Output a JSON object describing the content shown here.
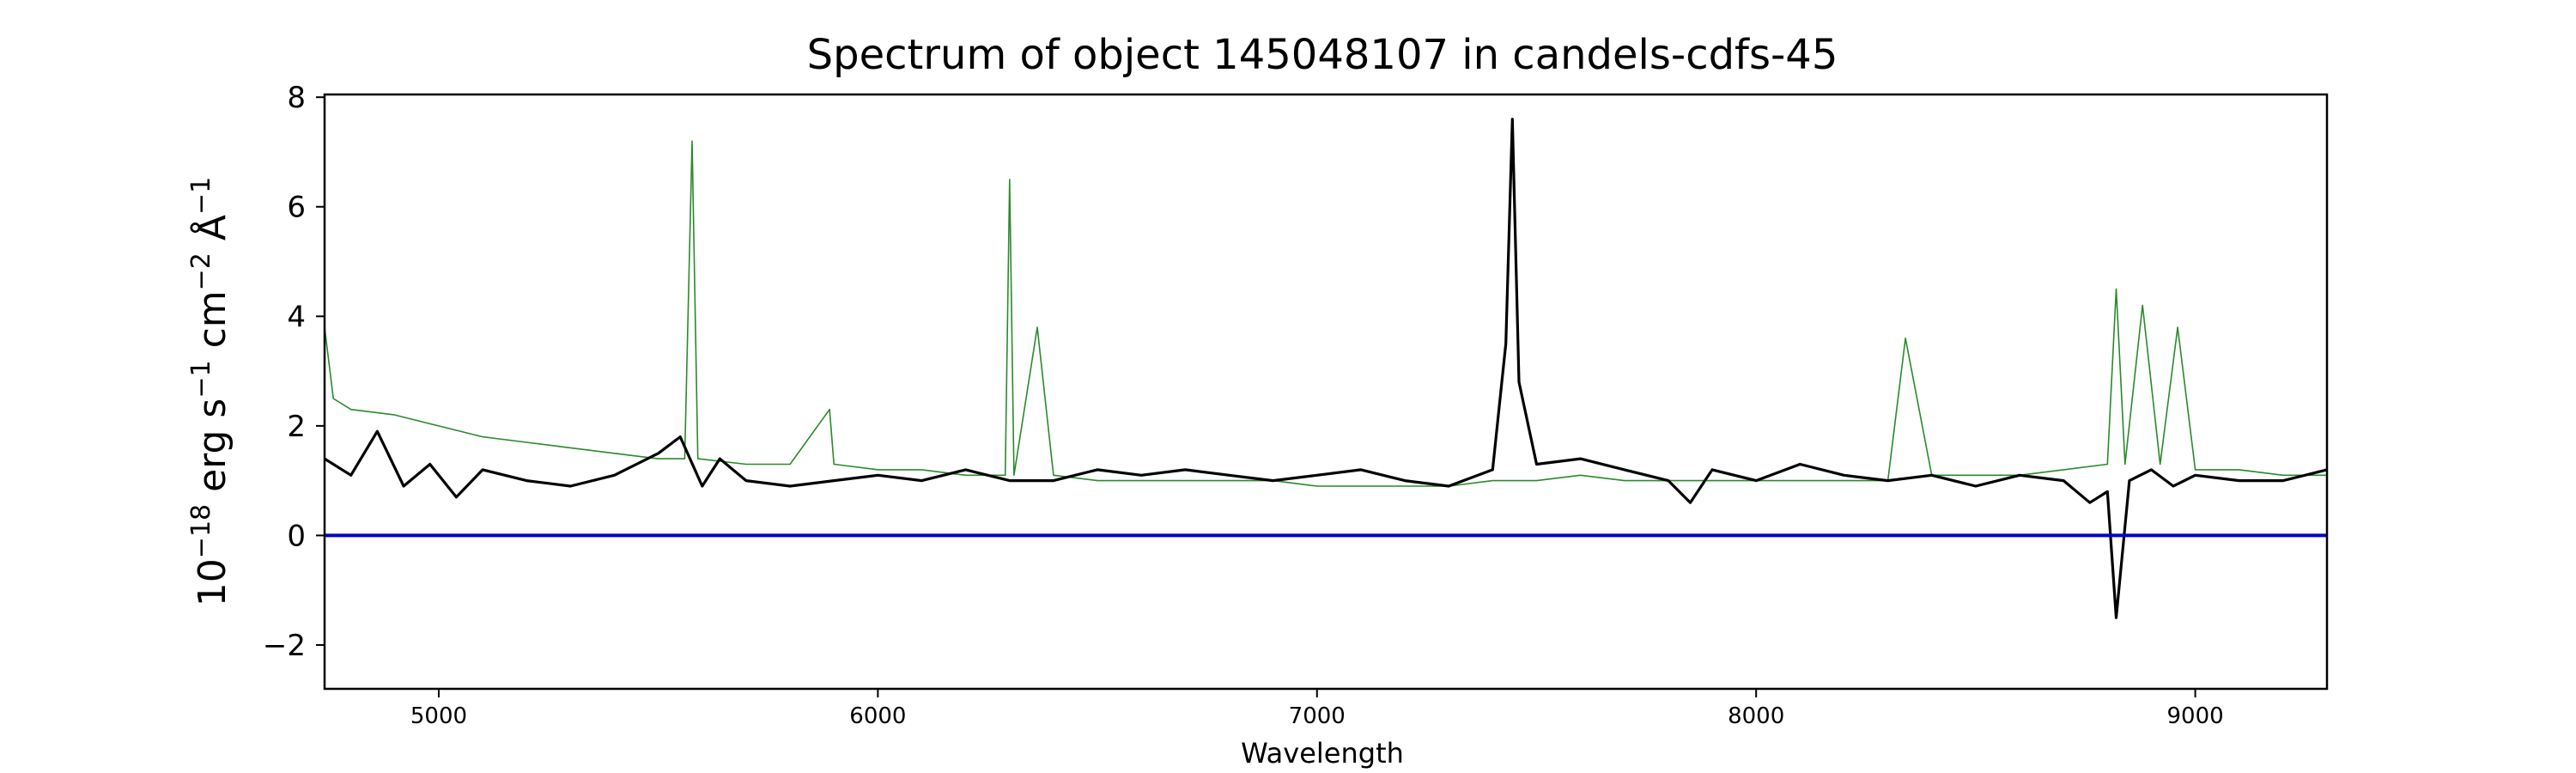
{
  "chart_data": {
    "type": "line",
    "title": "Spectrum of object 145048107 in candels-cdfs-45",
    "xlabel": "Wavelength",
    "ylabel_main": "10",
    "ylabel_sup": "−18",
    "ylabel_rest": " erg s",
    "ylabel_sup2": "−1",
    "ylabel_cm": " cm",
    "ylabel_sup3": "−2",
    "ylabel_A": " Å",
    "ylabel_sup4": "−1",
    "xlim": [
      4740,
      9300
    ],
    "ylim": [
      -2.8,
      8.05
    ],
    "x_ticks": [
      5000,
      6000,
      7000,
      8000,
      9000
    ],
    "x_tick_labels": [
      "5000",
      "6000",
      "7000",
      "8000",
      "9000"
    ],
    "y_ticks": [
      -2,
      0,
      2,
      4,
      6,
      8
    ],
    "y_tick_labels": [
      "−2",
      "0",
      "2",
      "4",
      "6",
      "8"
    ],
    "grid": false,
    "colors": {
      "flux": "#000000",
      "model": "#2a8a2a",
      "zero": "#0000cc"
    },
    "series": [
      {
        "role": "flux",
        "x": [
          4740,
          4800,
          4860,
          4920,
          4980,
          5040,
          5100,
          5200,
          5300,
          5400,
          5500,
          5550,
          5600,
          5640,
          5700,
          5800,
          5900,
          6000,
          6100,
          6200,
          6300,
          6400,
          6500,
          6600,
          6700,
          6800,
          6900,
          7000,
          7100,
          7200,
          7300,
          7400,
          7430,
          7445,
          7460,
          7500,
          7600,
          7700,
          7800,
          7850,
          7900,
          8000,
          8100,
          8200,
          8300,
          8400,
          8500,
          8600,
          8700,
          8760,
          8800,
          8820,
          8850,
          8900,
          8950,
          9000,
          9100,
          9200,
          9300
        ],
        "y": [
          1.4,
          1.1,
          1.9,
          0.9,
          1.3,
          0.7,
          1.2,
          1.0,
          0.9,
          1.1,
          1.5,
          1.8,
          0.9,
          1.4,
          1.0,
          0.9,
          1.0,
          1.1,
          1.0,
          1.2,
          1.0,
          1.0,
          1.2,
          1.1,
          1.2,
          1.1,
          1.0,
          1.1,
          1.2,
          1.0,
          0.9,
          1.2,
          3.5,
          7.6,
          2.8,
          1.3,
          1.4,
          1.2,
          1.0,
          0.6,
          1.2,
          1.0,
          1.3,
          1.1,
          1.0,
          1.1,
          0.9,
          1.1,
          1.0,
          0.6,
          0.8,
          -1.5,
          1.0,
          1.2,
          0.9,
          1.1,
          1.0,
          1.0,
          1.2
        ]
      },
      {
        "role": "model",
        "x": [
          4740,
          4760,
          4800,
          4900,
          5000,
          5100,
          5200,
          5300,
          5400,
          5500,
          5560,
          5577,
          5590,
          5700,
          5800,
          5890,
          5900,
          6000,
          6100,
          6200,
          6290,
          6300,
          6310,
          6363,
          6400,
          6500,
          6600,
          6700,
          6800,
          6900,
          7000,
          7100,
          7200,
          7300,
          7400,
          7500,
          7600,
          7700,
          7800,
          7900,
          8000,
          8100,
          8200,
          8300,
          8340,
          8400,
          8500,
          8600,
          8700,
          8800,
          8820,
          8840,
          8880,
          8920,
          8960,
          9000,
          9100,
          9200,
          9300
        ],
        "y": [
          3.8,
          2.5,
          2.3,
          2.2,
          2.0,
          1.8,
          1.7,
          1.6,
          1.5,
          1.4,
          1.4,
          7.2,
          1.4,
          1.3,
          1.3,
          2.3,
          1.3,
          1.2,
          1.2,
          1.1,
          1.1,
          6.5,
          1.1,
          3.8,
          1.1,
          1.0,
          1.0,
          1.0,
          1.0,
          1.0,
          0.9,
          0.9,
          0.9,
          0.9,
          1.0,
          1.0,
          1.1,
          1.0,
          1.0,
          1.0,
          1.0,
          1.0,
          1.0,
          1.0,
          3.6,
          1.1,
          1.1,
          1.1,
          1.2,
          1.3,
          4.5,
          1.3,
          4.2,
          1.3,
          3.8,
          1.2,
          1.2,
          1.1,
          1.1
        ]
      },
      {
        "role": "zero",
        "x": [
          4740,
          9300
        ],
        "y": [
          0,
          0
        ]
      }
    ]
  }
}
